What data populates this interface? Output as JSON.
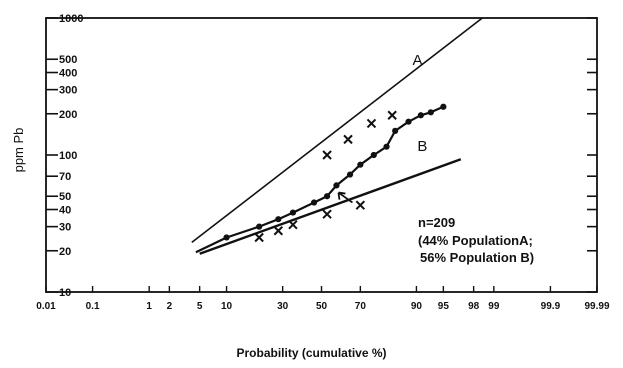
{
  "chart_data": {
    "type": "line",
    "title": "",
    "xlabel": "Probability (cumulative %)",
    "ylabel": "ppm Pb",
    "x_scale": "probability",
    "y_scale": "log",
    "xlim": [
      0.01,
      99.99
    ],
    "ylim": [
      10,
      1000
    ],
    "x_ticks": [
      {
        "value": 0.01,
        "label": "0.01"
      },
      {
        "value": 0.1,
        "label": "0.1"
      },
      {
        "value": 1,
        "label": "1"
      },
      {
        "value": 2,
        "label": "2"
      },
      {
        "value": 5,
        "label": "5"
      },
      {
        "value": 10,
        "label": "10"
      },
      {
        "value": 30,
        "label": "30"
      },
      {
        "value": 50,
        "label": "50"
      },
      {
        "value": 70,
        "label": "70"
      },
      {
        "value": 90,
        "label": "90"
      },
      {
        "value": 95,
        "label": "95"
      },
      {
        "value": 98,
        "label": "98"
      },
      {
        "value": 99,
        "label": "99"
      },
      {
        "value": 99.9,
        "label": "99.9"
      },
      {
        "value": 99.99,
        "label": "99.99"
      }
    ],
    "y_ticks": [
      {
        "value": 10,
        "label": "10"
      },
      {
        "value": 20,
        "label": "20"
      },
      {
        "value": 30,
        "label": "30"
      },
      {
        "value": 40,
        "label": "40"
      },
      {
        "value": 50,
        "label": "50"
      },
      {
        "value": 70,
        "label": "70"
      },
      {
        "value": 100,
        "label": "100"
      },
      {
        "value": 200,
        "label": "200"
      },
      {
        "value": 300,
        "label": "300"
      },
      {
        "value": 400,
        "label": "400"
      },
      {
        "value": 500,
        "label": "500"
      },
      {
        "value": 1000,
        "label": "1000"
      }
    ],
    "grid": false,
    "series": [
      {
        "name": "A",
        "kind": "fitted-line",
        "x": [
          4,
          98.5
        ],
        "y": [
          23,
          1000
        ],
        "points_x": [
          53,
          64,
          75,
          83
        ],
        "points_y": [
          100,
          130,
          170,
          195
        ],
        "marker": "x"
      },
      {
        "name": "B",
        "kind": "fitted-line",
        "x": [
          5,
          97
        ],
        "y": [
          19,
          93
        ],
        "points_x": [
          20,
          28,
          35,
          53,
          70
        ],
        "points_y": [
          25,
          28,
          31,
          37,
          43
        ],
        "marker": "x"
      },
      {
        "name": "",
        "kind": "observed-curve",
        "x": [
          4.5,
          10,
          20,
          28,
          35,
          46,
          53,
          58,
          65,
          70,
          76,
          81,
          84,
          88,
          91,
          93,
          95
        ],
        "y": [
          19.5,
          25,
          30,
          34,
          38,
          45,
          50,
          60,
          72,
          85,
          100,
          115,
          150,
          175,
          195,
          205,
          225
        ],
        "marker": "dot"
      }
    ],
    "annotations": [
      {
        "id": "n",
        "text": "n=209"
      },
      {
        "id": "popA",
        "text": "(44% PopulationA;"
      },
      {
        "id": "popB",
        "text": "56% Population B)"
      }
    ],
    "inflection_arrow": {
      "x": 58,
      "y": 55
    }
  }
}
